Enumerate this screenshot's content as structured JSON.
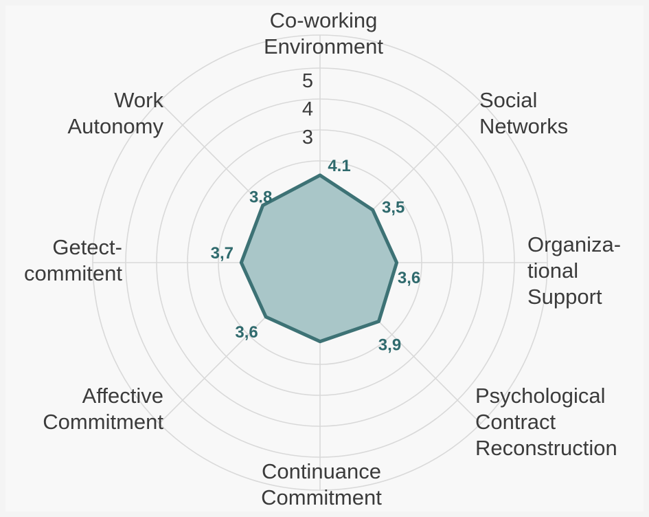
{
  "chart_data": {
    "type": "radar",
    "r_ticks": [
      "3",
      "4",
      "5"
    ],
    "r_range": [
      0,
      5
    ],
    "axes": [
      {
        "name": "Co-working Environment",
        "lines": [
          "Co-working",
          "Environment"
        ],
        "value": 4.1,
        "label": "4.1"
      },
      {
        "name": "Social Networks",
        "lines": [
          "Social",
          "Networks"
        ],
        "value": 3.5,
        "label": "3,5"
      },
      {
        "name": "Organizational Support",
        "lines": [
          "Organiza-",
          "tional",
          "Support"
        ],
        "value": 3.6,
        "label": "3,6"
      },
      {
        "name": "Psychological Contract Reconstruction",
        "lines": [
          "Psychological",
          "Contract",
          "Reconstruction"
        ],
        "value": 3.9,
        "label": "3,9"
      },
      {
        "name": "Continuance Commitment",
        "lines": [
          "Continuance",
          "Commitment"
        ],
        "value": 3.7,
        "label": ""
      },
      {
        "name": "Affective Commitment",
        "lines": [
          "Affective",
          "Commitment"
        ],
        "value": 3.6,
        "label": "3,6"
      },
      {
        "name": "Getect-commitent",
        "lines": [
          "Getect-",
          "commitent"
        ],
        "value": 3.7,
        "label": "3,7"
      },
      {
        "name": "Work Autonomy",
        "lines": [
          "Work",
          "Autonomy"
        ],
        "value": 3.8,
        "label": "3.8"
      }
    ],
    "colors": {
      "fill": "#a9c6c8",
      "stroke": "#3d7275",
      "value_text": "#2f6a6d",
      "grid": "#d9d9d9"
    },
    "grid": true
  }
}
